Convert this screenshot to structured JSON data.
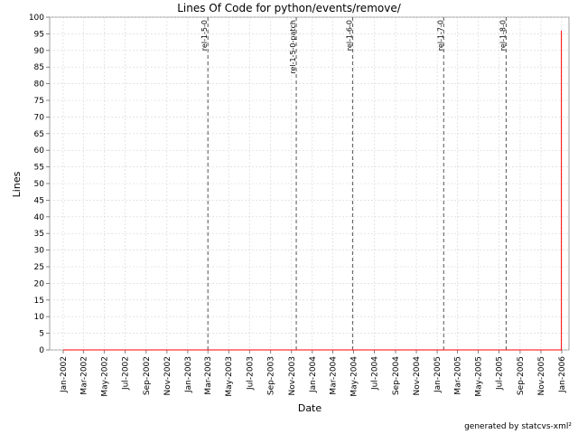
{
  "chart_data": {
    "type": "line",
    "title": "Lines Of Code for python/events/remove/",
    "xlabel": "Date",
    "ylabel": "Lines",
    "credit": "generated by statcvs-xml²",
    "ylim": [
      0,
      100
    ],
    "yticks": [
      0,
      5,
      10,
      15,
      20,
      25,
      30,
      35,
      40,
      45,
      50,
      55,
      60,
      65,
      70,
      75,
      80,
      85,
      90,
      95,
      100
    ],
    "xlim": [
      "2002-01-01",
      "2006-01-01"
    ],
    "xticks": [
      {
        "date": "2002-01-01",
        "label": "Jan-2002"
      },
      {
        "date": "2002-03-01",
        "label": "Mar-2002"
      },
      {
        "date": "2002-05-01",
        "label": "May-2002"
      },
      {
        "date": "2002-07-01",
        "label": "Jul-2002"
      },
      {
        "date": "2002-09-01",
        "label": "Sep-2002"
      },
      {
        "date": "2002-11-01",
        "label": "Nov-2002"
      },
      {
        "date": "2003-01-01",
        "label": "Jan-2003"
      },
      {
        "date": "2003-03-01",
        "label": "Mar-2003"
      },
      {
        "date": "2003-05-01",
        "label": "May-2003"
      },
      {
        "date": "2003-07-01",
        "label": "Jul-2003"
      },
      {
        "date": "2003-09-01",
        "label": "Sep-2003"
      },
      {
        "date": "2003-11-01",
        "label": "Nov-2003"
      },
      {
        "date": "2004-01-01",
        "label": "Jan-2004"
      },
      {
        "date": "2004-03-01",
        "label": "Mar-2004"
      },
      {
        "date": "2004-05-01",
        "label": "May-2004"
      },
      {
        "date": "2004-07-01",
        "label": "Jul-2004"
      },
      {
        "date": "2004-09-01",
        "label": "Sep-2004"
      },
      {
        "date": "2004-11-01",
        "label": "Nov-2004"
      },
      {
        "date": "2005-01-01",
        "label": "Jan-2005"
      },
      {
        "date": "2005-03-01",
        "label": "Mar-2005"
      },
      {
        "date": "2005-05-01",
        "label": "May-2005"
      },
      {
        "date": "2005-07-01",
        "label": "Jul-2005"
      },
      {
        "date": "2005-09-01",
        "label": "Sep-2005"
      },
      {
        "date": "2005-11-01",
        "label": "Nov-2005"
      },
      {
        "date": "2006-01-01",
        "label": "Jan-2006"
      }
    ],
    "grid": true,
    "markers": [
      {
        "label": "rel-1-5-0",
        "date": "2003-03-01"
      },
      {
        "label": "rel-1-5-0-patch",
        "date": "2003-11-15"
      },
      {
        "label": "rel-1-6-0",
        "date": "2004-04-28"
      },
      {
        "label": "rel-1-7-0",
        "date": "2005-01-20"
      },
      {
        "label": "rel-1-8-0",
        "date": "2005-07-22"
      }
    ],
    "series": [
      {
        "color": "#ff0000",
        "points": [
          {
            "x": "2002-01-01",
            "y": 0
          },
          {
            "x": "2005-12-31",
            "y": 0
          },
          {
            "x": "2005-12-31",
            "y": 96
          }
        ]
      }
    ]
  }
}
